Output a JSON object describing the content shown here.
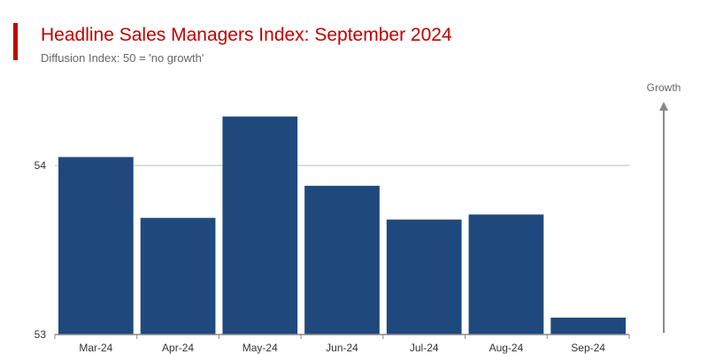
{
  "header": {
    "title": "Headline Sales Managers Index: September 2024",
    "subtitle": "Diffusion Index: 50 = 'no growth'"
  },
  "colors": {
    "accent": "#c00000",
    "bar": "#1f497d",
    "gridline": "#bbbbbb",
    "axis": "#888888",
    "growth_arrow": "#888888"
  },
  "chart_data": {
    "type": "bar",
    "title": "Headline Sales Managers Index: September 2024",
    "subtitle": "Diffusion Index: 50 = 'no growth'",
    "categories": [
      "Mar-24",
      "Apr-24",
      "May-24",
      "Jun-24",
      "Jul-24",
      "Aug-24",
      "Sep-24"
    ],
    "values": [
      54.05,
      53.69,
      54.29,
      53.88,
      53.68,
      53.71,
      53.1
    ],
    "ylim": [
      53,
      54.5
    ],
    "yticks": [
      53,
      54
    ],
    "ytick_labels": [
      "53",
      "54"
    ],
    "gridlines": [
      54
    ],
    "xlabel": "",
    "ylabel": "",
    "legend": "none",
    "annotations": [
      {
        "text": "Growth",
        "type": "upward-arrow",
        "placement": "right"
      }
    ]
  }
}
